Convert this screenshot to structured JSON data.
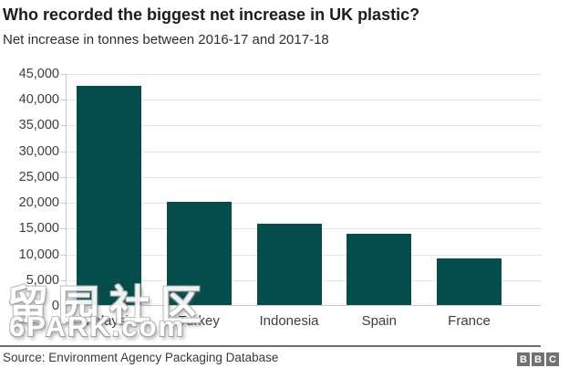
{
  "header": {
    "title": "Who recorded the biggest net increase in UK plastic?",
    "subtitle": "Net increase in tonnes between 2016-17 and 2017-18"
  },
  "chart_data": {
    "type": "bar",
    "title": "Who recorded the biggest net increase in UK plastic?",
    "subtitle": "Net increase in tonnes between 2016-17 and 2017-18",
    "categories": [
      "Malaysia",
      "Turkey",
      "Indonesia",
      "Spain",
      "France"
    ],
    "values": [
      42500,
      20000,
      15800,
      13900,
      9100
    ],
    "xlabel": "",
    "ylabel": "",
    "ylim": [
      0,
      45000
    ],
    "ytick_interval": 5000,
    "ytick_labels": [
      "0",
      "5,000",
      "10,000",
      "15,000",
      "20,000",
      "25,000",
      "30,000",
      "35,000",
      "40,000",
      "45,000"
    ],
    "grid": true,
    "legend": "none",
    "bar_color": "#044d4b"
  },
  "colors": {
    "bar": "#044d4b",
    "logo_square": "#717171",
    "gridline": "#e4e4e4",
    "axis": "#c9c9c9"
  },
  "footer": {
    "source": "Source: Environment Agency Packaging Database",
    "logo_letters": [
      "B",
      "B",
      "C"
    ]
  },
  "watermark": {
    "line1": "留园社区",
    "line2": "6PARK.com"
  }
}
